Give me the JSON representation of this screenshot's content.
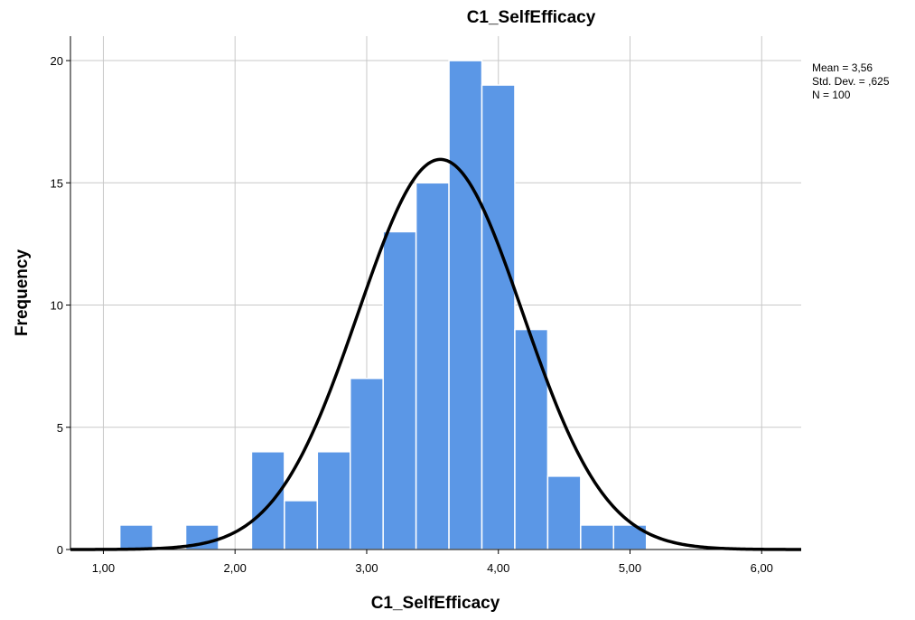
{
  "chart_data": {
    "type": "bar",
    "title": "C1_SelfEfficacy",
    "xlabel": "C1_SelfEfficacy",
    "ylabel": "Frequency",
    "xlim": [
      0.75,
      6.3
    ],
    "ylim": [
      0,
      21
    ],
    "x_ticks": [
      1,
      2,
      3,
      4,
      5,
      6
    ],
    "x_tick_labels": [
      "1,00",
      "2,00",
      "3,00",
      "4,00",
      "5,00",
      "6,00"
    ],
    "y_ticks": [
      0,
      5,
      10,
      15,
      20
    ],
    "y_tick_labels": [
      "0",
      "5",
      "10",
      "15",
      "20"
    ],
    "bin_width": 0.25,
    "bins": [
      {
        "start": 1.125,
        "count": 1
      },
      {
        "start": 1.625,
        "count": 1
      },
      {
        "start": 2.125,
        "count": 4
      },
      {
        "start": 2.375,
        "count": 2
      },
      {
        "start": 2.625,
        "count": 4
      },
      {
        "start": 2.875,
        "count": 7
      },
      {
        "start": 3.125,
        "count": 13
      },
      {
        "start": 3.375,
        "count": 15
      },
      {
        "start": 3.625,
        "count": 20
      },
      {
        "start": 3.875,
        "count": 19
      },
      {
        "start": 4.125,
        "count": 9
      },
      {
        "start": 4.375,
        "count": 3
      },
      {
        "start": 4.625,
        "count": 1
      },
      {
        "start": 4.875,
        "count": 1
      }
    ],
    "normal_curve": {
      "mean": 3.56,
      "std_dev": 0.625,
      "n": 100
    },
    "grid": true,
    "stats": {
      "mean": "Mean = 3,56",
      "std_dev": "Std. Dev. = ,625",
      "n": "N = 100"
    }
  }
}
